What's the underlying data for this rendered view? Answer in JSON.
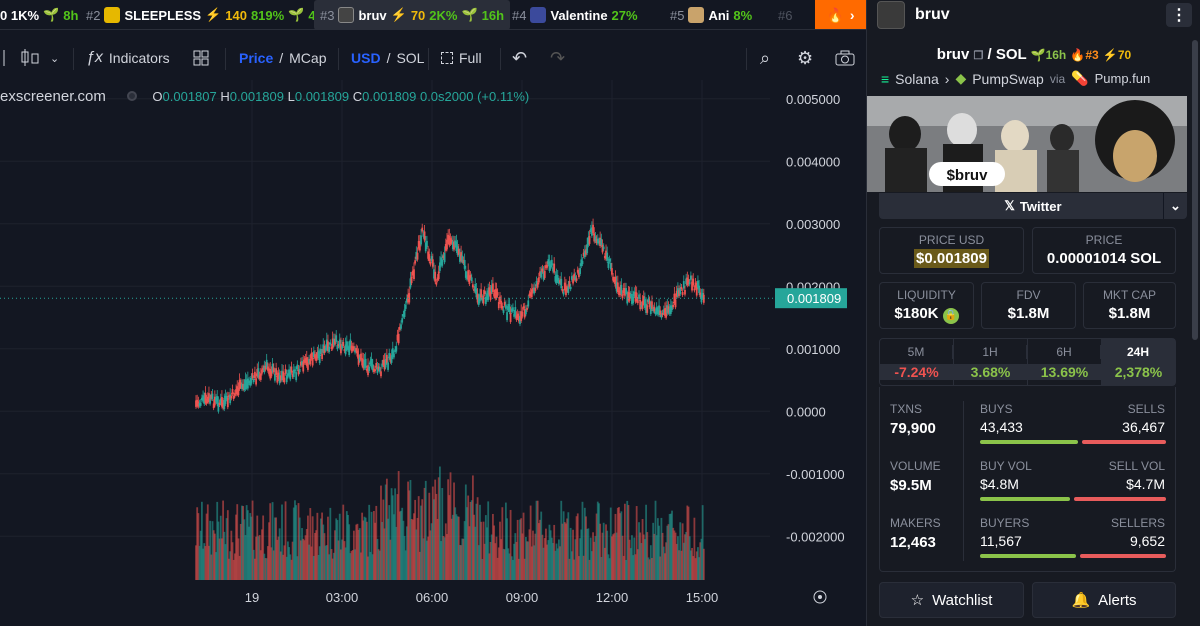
{
  "tabs": [
    {
      "rank": "",
      "name": "0 1K%",
      "gain": "",
      "change": "",
      "age": "8h"
    },
    {
      "rank": "#2",
      "name": "SLEEPLESS",
      "boost": "140",
      "change": "819%",
      "age": "4h"
    },
    {
      "rank": "#3",
      "name": "bruv",
      "boost": "70",
      "change": "2K%",
      "age": "16h"
    },
    {
      "rank": "#4",
      "name": "Valentine",
      "change": "27%"
    },
    {
      "rank": "#5",
      "name": "Ani",
      "change": "8%"
    },
    {
      "rank": "#6",
      "name": ""
    }
  ],
  "toolbar": {
    "indicators": "Indicators",
    "price": "Price",
    "mcap": "MCap",
    "usd": "USD",
    "sol": "SOL",
    "full": "Full"
  },
  "ohlc": {
    "source": "exscreener.com",
    "o_label": "O",
    "o": "0.001807",
    "h_label": "H",
    "h": "0.001809",
    "l_label": "L",
    "l": "0.001809",
    "c_label": "C",
    "c": "0.001809",
    "delta": "0.0s2000 (+0.11%)"
  },
  "chart_data": {
    "type": "line",
    "title": "",
    "y_ticks": [
      "0.005000",
      "0.004000",
      "0.003000",
      "0.002000",
      "0.001000",
      "0.0000",
      "-0.001000",
      "-0.002000"
    ],
    "x_ticks": [
      "19",
      "03:00",
      "06:00",
      "09:00",
      "12:00",
      "15:00"
    ],
    "current_price_label": "0.001809",
    "series": [
      {
        "values": [
          0.00012,
          0.00018,
          0.0001,
          0.00035,
          0.0005,
          0.0007,
          0.00055,
          0.0006,
          0.0008,
          0.00095,
          0.0011,
          0.001,
          0.00075,
          0.00065,
          0.0009,
          0.0018,
          0.0029,
          0.0021,
          0.0028,
          0.0023,
          0.0018,
          0.0019,
          0.0016,
          0.0015,
          0.002,
          0.0024,
          0.0019,
          0.0022,
          0.0029,
          0.0025,
          0.0019,
          0.0018,
          0.0017,
          0.0015,
          0.0018,
          0.0021,
          0.00181
        ]
      }
    ],
    "ylim": [
      -0.0027,
      0.0053
    ],
    "grid": true
  },
  "panel": {
    "title": "bruv",
    "pair_base": "bruv",
    "pair_quote": "SOL",
    "age": "16h",
    "rank": "#3",
    "boost": "70",
    "chain": "Solana",
    "dex": "PumpSwap",
    "via": "via",
    "launchpad": "Pump.fun",
    "banner_text": "$bruv",
    "twitter": "Twitter",
    "price_usd_label": "PRICE USD",
    "price_usd": "$0.001809",
    "price_sol_label": "PRICE",
    "price_sol": "0.00001014 SOL",
    "liq_label": "LIQUIDITY",
    "liq": "$180K",
    "fdv_label": "FDV",
    "fdv": "$1.8M",
    "mcap_label": "MKT CAP",
    "mcap": "$1.8M",
    "changes": [
      {
        "label": "5M",
        "value": "-7.24%",
        "color": "#ef5350"
      },
      {
        "label": "1H",
        "value": "3.68%",
        "color": "#8bc34a"
      },
      {
        "label": "6H",
        "value": "13.69%",
        "color": "#8bc34a"
      },
      {
        "label": "24H",
        "value": "2,378%",
        "color": "#8bc34a"
      }
    ],
    "txns_label": "TXNS",
    "txns": "79,900",
    "buys_label": "BUYS",
    "buys": "43,433",
    "sells_label": "SELLS",
    "sells": "36,467",
    "volume_label": "VOLUME",
    "volume": "$9.5M",
    "buyvol_label": "BUY VOL",
    "buyvol": "$4.8M",
    "sellvol_label": "SELL VOL",
    "sellvol": "$4.7M",
    "makers_label": "MAKERS",
    "makers": "12,463",
    "buyers_label": "BUYERS",
    "buyers": "11,567",
    "sellers_label": "SELLERS",
    "sellers": "9,652",
    "watchlist": "Watchlist",
    "alerts": "Alerts"
  }
}
